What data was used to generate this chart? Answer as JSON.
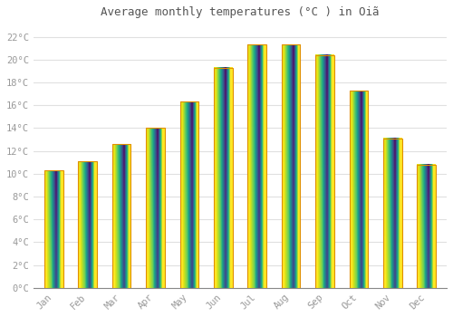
{
  "title": "Average monthly temperatures (°C ) in Oiã",
  "months": [
    "Jan",
    "Feb",
    "Mar",
    "Apr",
    "May",
    "Jun",
    "Jul",
    "Aug",
    "Sep",
    "Oct",
    "Nov",
    "Dec"
  ],
  "temperatures": [
    10.3,
    11.1,
    12.6,
    14.0,
    16.3,
    19.3,
    21.3,
    21.3,
    20.4,
    17.3,
    13.1,
    10.8
  ],
  "bar_color_bottom": "#F5A623",
  "bar_color_top": "#FFD966",
  "ylim": [
    0,
    23
  ],
  "yticks": [
    0,
    2,
    4,
    6,
    8,
    10,
    12,
    14,
    16,
    18,
    20,
    22
  ],
  "ytick_labels": [
    "0°C",
    "2°C",
    "4°C",
    "6°C",
    "8°C",
    "10°C",
    "12°C",
    "14°C",
    "16°C",
    "18°C",
    "20°C",
    "22°C"
  ],
  "background_color": "#ffffff",
  "grid_color": "#e0e0e0",
  "font_color": "#999999",
  "title_color": "#555555",
  "bar_width": 0.55,
  "bar_edge_color": "#E09000",
  "bar_edge_width": 0.8
}
